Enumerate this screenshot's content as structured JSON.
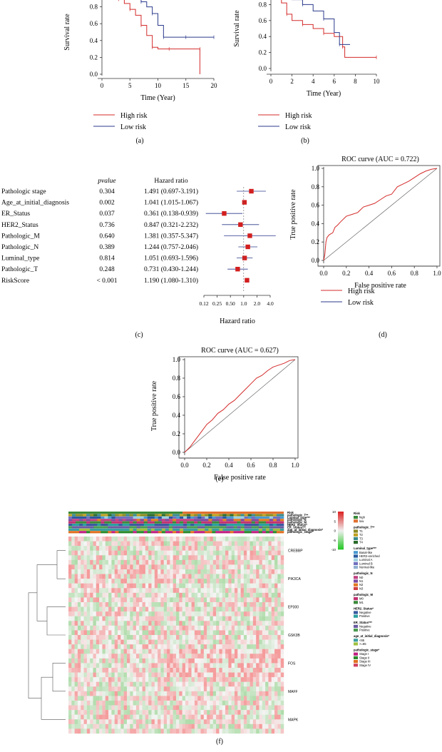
{
  "panel_labels": [
    "(a)",
    "(b)",
    "(c)",
    "(d)",
    "(e)",
    "(f)"
  ],
  "colors": {
    "high": "#d42b2b",
    "low": "#2b3b8c",
    "forest_box": "#d21f1f",
    "diag": "#555555"
  },
  "chart_data": [
    {
      "id": "a",
      "type": "line",
      "xlabel": "Time (Year)",
      "ylabel": "Survival rate",
      "xlim": [
        0,
        20
      ],
      "ylim": [
        0,
        1.0
      ],
      "xticks": [
        "0",
        "5",
        "10",
        "15",
        "20"
      ],
      "yticks": [
        "0.0",
        "0.2",
        "0.4",
        "0.6",
        "0.8"
      ],
      "series": [
        {
          "name": "High risk",
          "x": [
            0,
            1,
            2,
            3,
            4,
            5,
            6,
            7,
            8,
            9,
            10,
            12,
            15,
            17.5,
            17.5
          ],
          "y": [
            1.0,
            0.98,
            0.94,
            0.89,
            0.84,
            0.77,
            0.7,
            0.58,
            0.46,
            0.32,
            0.3,
            0.3,
            0.3,
            0.3,
            0.0
          ]
        },
        {
          "name": "Low risk",
          "x": [
            0,
            1,
            2,
            3,
            4,
            5,
            6,
            7,
            8,
            9,
            10,
            11,
            13,
            15,
            18,
            20
          ],
          "y": [
            1.0,
            1.0,
            0.99,
            0.97,
            0.95,
            0.93,
            0.9,
            0.86,
            0.8,
            0.72,
            0.58,
            0.44,
            0.44,
            0.44,
            0.44,
            0.44
          ]
        }
      ]
    },
    {
      "id": "b",
      "type": "line",
      "xlabel": "Time (Year)",
      "ylabel": "Survival rate",
      "xlim": [
        0,
        10
      ],
      "ylim": [
        0,
        1.0
      ],
      "xticks": [
        "0",
        "2",
        "4",
        "6",
        "8",
        "10"
      ],
      "yticks": [
        "0.0",
        "0.2",
        "0.4",
        "0.6",
        "0.8"
      ],
      "series": [
        {
          "name": "High risk",
          "x": [
            0,
            0.5,
            1,
            1.5,
            2,
            3,
            4,
            5,
            6,
            6.8,
            7,
            10
          ],
          "y": [
            1.0,
            0.92,
            0.82,
            0.68,
            0.6,
            0.55,
            0.5,
            0.44,
            0.4,
            0.27,
            0.14,
            0.14
          ]
        },
        {
          "name": "Low risk",
          "x": [
            0,
            1,
            2,
            3,
            4,
            5,
            6,
            6.5,
            7.5
          ],
          "y": [
            1.0,
            0.96,
            0.86,
            0.8,
            0.72,
            0.62,
            0.45,
            0.3,
            0.3
          ]
        }
      ]
    },
    {
      "id": "c",
      "type": "table",
      "headers": {
        "pvalue": "pvalue",
        "hr": "Hazard ratio"
      },
      "xlabel": "Hazard ratio",
      "xticks": [
        "0.12",
        "0.25",
        "0.50",
        "1.0",
        "2.0",
        "4.0"
      ],
      "xtick_values": [
        0.125,
        0.25,
        0.5,
        1.0,
        2.0,
        4.0
      ],
      "rows": [
        {
          "name": "Pathologic stage",
          "pvalue": "0.304",
          "hr_text": "1.491 (0.697-3.191)",
          "hr": 1.491,
          "lo": 0.697,
          "hi": 3.191
        },
        {
          "name": "Age_at_initial_diagnosis",
          "pvalue": "0.002",
          "hr_text": "1.041 (1.015-1.067)",
          "hr": 1.041,
          "lo": 1.015,
          "hi": 1.067
        },
        {
          "name": "ER_Status",
          "pvalue": "0.037",
          "hr_text": "0.361 (0.138-0.939)",
          "hr": 0.361,
          "lo": 0.138,
          "hi": 0.939
        },
        {
          "name": "HER2_Status",
          "pvalue": "0.736",
          "hr_text": "0.847 (0.321-2.232)",
          "hr": 0.847,
          "lo": 0.321,
          "hi": 2.232
        },
        {
          "name": "Pathologic_M",
          "pvalue": "0.640",
          "hr_text": "1.381 (0.357-5.347)",
          "hr": 1.381,
          "lo": 0.357,
          "hi": 5.347
        },
        {
          "name": "Pathologic_N",
          "pvalue": "0.389",
          "hr_text": "1.244 (0.757-2.046)",
          "hr": 1.244,
          "lo": 0.757,
          "hi": 2.046
        },
        {
          "name": "Luminal_type",
          "pvalue": "0.814",
          "hr_text": "1.051 (0.693-1.596)",
          "hr": 1.051,
          "lo": 0.693,
          "hi": 1.596
        },
        {
          "name": "Pathologic_T",
          "pvalue": "0.248",
          "hr_text": "0.731 (0.430-1.244)",
          "hr": 0.731,
          "lo": 0.43,
          "hi": 1.244
        },
        {
          "name": "RiskScore",
          "pvalue": "< 0.001",
          "hr_text": "1.190 (1.080-1.310)",
          "hr": 1.19,
          "lo": 1.08,
          "hi": 1.31
        }
      ]
    },
    {
      "id": "d",
      "type": "line",
      "title": "ROC curve (AUC = 0.722)",
      "xlabel": "False positive rate",
      "ylabel": "True positive rate",
      "xlim": [
        0,
        1
      ],
      "ylim": [
        0,
        1
      ],
      "xticks": [
        "0.0",
        "0.2",
        "0.4",
        "0.6",
        "0.8",
        "1.0"
      ],
      "yticks": [
        "0.0",
        "0.2",
        "0.4",
        "0.6",
        "0.8",
        "1.0"
      ],
      "series": [
        {
          "name": "ROC",
          "x": [
            0,
            0.01,
            0.02,
            0.03,
            0.05,
            0.08,
            0.1,
            0.12,
            0.15,
            0.2,
            0.25,
            0.3,
            0.35,
            0.4,
            0.45,
            0.5,
            0.55,
            0.6,
            0.65,
            0.7,
            0.75,
            0.8,
            0.85,
            0.9,
            0.95,
            1.0
          ],
          "y": [
            0,
            0.06,
            0.2,
            0.25,
            0.28,
            0.3,
            0.36,
            0.38,
            0.42,
            0.48,
            0.5,
            0.52,
            0.58,
            0.6,
            0.62,
            0.66,
            0.7,
            0.72,
            0.8,
            0.83,
            0.86,
            0.9,
            0.94,
            0.97,
            0.99,
            1.0
          ]
        }
      ],
      "legend": [
        "High risk",
        "Low risk"
      ]
    },
    {
      "id": "e",
      "type": "line",
      "title": "ROC curve (AUC = 0.627)",
      "xlabel": "False positive rate",
      "ylabel": "True positive rate",
      "xlim": [
        0,
        1
      ],
      "ylim": [
        0,
        1
      ],
      "xticks": [
        "0.0",
        "0.2",
        "0.4",
        "0.6",
        "0.8",
        "1.0"
      ],
      "yticks": [
        "0.0",
        "0.2",
        "0.4",
        "0.6",
        "0.8",
        "1.0"
      ],
      "series": [
        {
          "name": "ROC",
          "x": [
            0,
            0.05,
            0.1,
            0.15,
            0.2,
            0.25,
            0.3,
            0.35,
            0.4,
            0.45,
            0.5,
            0.55,
            0.6,
            0.65,
            0.7,
            0.75,
            0.8,
            0.85,
            0.9,
            0.95,
            1.0
          ],
          "y": [
            0,
            0.06,
            0.14,
            0.22,
            0.3,
            0.35,
            0.42,
            0.46,
            0.52,
            0.56,
            0.62,
            0.68,
            0.74,
            0.8,
            0.83,
            0.88,
            0.92,
            0.94,
            0.96,
            0.99,
            1.0
          ]
        }
      ]
    },
    {
      "id": "f",
      "type": "heatmap",
      "annotation_rows": [
        "Risk",
        "pathologic_T**",
        "Luminal_type***",
        "pathologic_N",
        "pathologic_M",
        "HER2_Status*",
        "ER_Status***",
        "age_at_initial_diagnosis*",
        "pathologic_stage*"
      ],
      "genes": [
        "CREBBP",
        "PIK3CA",
        "EP300",
        "GSK3B",
        "FOS",
        "MAFF",
        "MAPK"
      ],
      "scale_ticks": [
        "10",
        "5",
        "0",
        "-5",
        "-10"
      ],
      "legend_groups": [
        {
          "title": "Risk",
          "items": [
            {
              "label": "high",
              "color": "#3a8a3a"
            },
            {
              "label": "low",
              "color": "#e07030"
            }
          ]
        },
        {
          "title": "pathologic_T**",
          "items": [
            {
              "label": "T1",
              "color": "#8a8a20"
            },
            {
              "label": "T2",
              "color": "#bfa020"
            },
            {
              "label": "T3",
              "color": "#3a8a8a"
            },
            {
              "label": "T4",
              "color": "#2a6a2a"
            }
          ]
        },
        {
          "title": "Luminal_type***",
          "items": [
            {
              "label": "Basal-like",
              "color": "#4a9ad0"
            },
            {
              "label": "HER2-enriched",
              "color": "#2a5aa0"
            },
            {
              "label": "Luminal A",
              "color": "#9ad0e0"
            },
            {
              "label": "Luminal B",
              "color": "#7070c0"
            },
            {
              "label": "Normal-like",
              "color": "#90b0d0"
            }
          ]
        },
        {
          "title": "pathologic_N",
          "items": [
            {
              "label": "N0",
              "color": "#c04080"
            },
            {
              "label": "N1",
              "color": "#7a4aa0"
            },
            {
              "label": "N2",
              "color": "#e07a20"
            },
            {
              "label": "N3",
              "color": "#d04040"
            }
          ]
        },
        {
          "title": "pathologic_M",
          "items": [
            {
              "label": "M0",
              "color": "#c03070"
            },
            {
              "label": "M1",
              "color": "#3a8a3a"
            }
          ]
        },
        {
          "title": "HER2_Status*",
          "items": [
            {
              "label": "Negative",
              "color": "#3a5aa0"
            },
            {
              "label": "Positive",
              "color": "#2aa0a0"
            }
          ]
        },
        {
          "title": "ER_Status***",
          "items": [
            {
              "label": "Negative",
              "color": "#6a5aa0"
            },
            {
              "label": "Positive",
              "color": "#4a9a50"
            }
          ]
        },
        {
          "title": "age_at_initial_diagnosis*",
          "items": [
            {
              "label": "<65",
              "color": "#3aa0a0"
            },
            {
              "label": ">=65",
              "color": "#a0c040"
            }
          ]
        },
        {
          "title": "pathologic_stage*",
          "items": [
            {
              "label": "Stage I",
              "color": "#c02080"
            },
            {
              "label": "Stage II",
              "color": "#2a8a2a"
            },
            {
              "label": "Stage III",
              "color": "#e07020"
            },
            {
              "label": "Stage IV",
              "color": "#d04060"
            }
          ]
        }
      ]
    }
  ]
}
